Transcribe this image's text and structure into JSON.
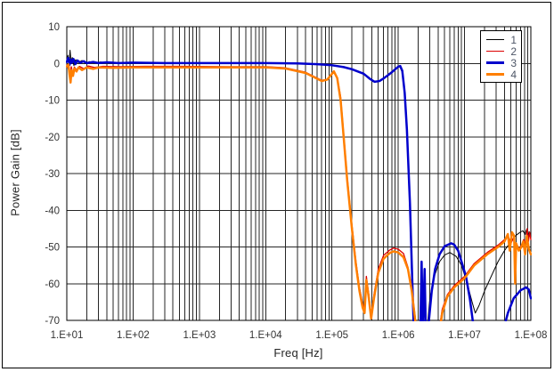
{
  "window": {
    "background": "#ffffff",
    "border_color": "#000000"
  },
  "axis_titles": {
    "x": "Freq [Hz]",
    "y": "Power Gain [dB]"
  },
  "chart_data": {
    "type": "line",
    "title": "",
    "xlabel": "Freq [Hz]",
    "ylabel": "Power Gain [dB]",
    "x_scale": "log",
    "xlim": [
      10,
      100000000
    ],
    "ylim": [
      -70,
      10
    ],
    "x_tick_labels": [
      "1.E+01",
      "1.E+02",
      "1.E+03",
      "1.E+04",
      "1.E+05",
      "1.E+06",
      "1.E+07",
      "1.E+08"
    ],
    "y_ticks": [
      10,
      0,
      -10,
      -20,
      -30,
      -40,
      -50,
      -60,
      -70
    ],
    "grid": {
      "show": true,
      "color": "#262626",
      "minor_log_vertical": true
    },
    "legend_position": "top-right",
    "legend_text_color": "#4d5566",
    "series": [
      {
        "name": "1",
        "color": "#000000",
        "stroke_width": 1,
        "points": [
          [
            10,
            0.2
          ],
          [
            10.4,
            2.2
          ],
          [
            10.8,
            -0.8
          ],
          [
            11.2,
            3.6
          ],
          [
            11.6,
            0.4
          ],
          [
            12.1,
            1.6
          ],
          [
            12.8,
            -0.6
          ],
          [
            13.6,
            1.0
          ],
          [
            15,
            0.2
          ],
          [
            17,
            0.8
          ],
          [
            19,
            0.0
          ],
          [
            22,
            0.5
          ],
          [
            26,
            0.1
          ],
          [
            32,
            0.4
          ],
          [
            45,
            0.1
          ],
          [
            70,
            0.2
          ],
          [
            150,
            0.1
          ],
          [
            500,
            0.1
          ],
          [
            2000,
            0.1
          ],
          [
            10000.0,
            0.1
          ],
          [
            30000.0,
            0.0
          ],
          [
            60000.0,
            -0.2
          ],
          [
            100000.0,
            -0.5
          ],
          [
            150000.0,
            -1.0
          ],
          [
            200000.0,
            -1.6
          ],
          [
            300000.0,
            -2.9
          ],
          [
            420000.0,
            -5.0
          ],
          [
            500000.0,
            -4.8
          ],
          [
            600000.0,
            -4.1
          ],
          [
            700000.0,
            -3.2
          ],
          [
            850000.0,
            -2.0
          ],
          [
            950000.0,
            -1.2
          ],
          [
            1050000.0,
            -0.8
          ],
          [
            1150000.0,
            -2.5
          ],
          [
            1250000.0,
            -9
          ],
          [
            1400000.0,
            -24
          ],
          [
            1550000.0,
            -45
          ],
          [
            1650000.0,
            -60
          ],
          [
            1750000.0,
            -73
          ],
          [
            2700000.0,
            -73
          ],
          [
            3000000.0,
            -64
          ],
          [
            3500000.0,
            -58
          ],
          [
            4200000.0,
            -54
          ],
          [
            5000000.0,
            -52.2
          ],
          [
            6000000.0,
            -51.5
          ],
          [
            7500000.0,
            -52.6
          ],
          [
            9000000.0,
            -55
          ],
          [
            11000000.0,
            -60
          ],
          [
            13000000.0,
            -65
          ],
          [
            14500000.0,
            -68
          ],
          [
            16500000.0,
            -66
          ],
          [
            20000000.0,
            -62
          ],
          [
            26000000.0,
            -57.5
          ],
          [
            32000000.0,
            -54
          ],
          [
            40000000.0,
            -51
          ],
          [
            50000000.0,
            -48.5
          ],
          [
            60000000.0,
            -46.8
          ],
          [
            70000000.0,
            -45.9
          ],
          [
            76000000.0,
            -45.6
          ],
          [
            82000000.0,
            -46.6
          ],
          [
            86000000.0,
            -45.3
          ],
          [
            90000000.0,
            -47.5
          ],
          [
            94000000.0,
            -45.8
          ],
          [
            100000000.0,
            -47
          ]
        ]
      },
      {
        "name": "2",
        "color": "#dd0000",
        "stroke_width": 1.3,
        "points": [
          [
            10,
            -0.4
          ],
          [
            10.7,
            -1.6
          ],
          [
            11.2,
            -3.4
          ],
          [
            11.7,
            -0.9
          ],
          [
            12.3,
            -2.6
          ],
          [
            13,
            -1.0
          ],
          [
            14.2,
            -1.9
          ],
          [
            15.5,
            -0.8
          ],
          [
            18,
            -1.4
          ],
          [
            21,
            -0.7
          ],
          [
            26,
            -1.1
          ],
          [
            35,
            -0.8
          ],
          [
            60,
            -0.9
          ],
          [
            150,
            -0.8
          ],
          [
            600,
            -0.8
          ],
          [
            3000,
            -0.9
          ],
          [
            10000.0,
            -0.9
          ],
          [
            20000.0,
            -1.2
          ],
          [
            40000.0,
            -2.4
          ],
          [
            70000.0,
            -4.6
          ],
          [
            85000.0,
            -4.3
          ],
          [
            107000.0,
            -2.0
          ],
          [
            120000.0,
            -3.8
          ],
          [
            135000.0,
            -9
          ],
          [
            150000.0,
            -19
          ],
          [
            170000.0,
            -31
          ],
          [
            200000.0,
            -44
          ],
          [
            230000.0,
            -54
          ],
          [
            260000.0,
            -61
          ],
          [
            290000.0,
            -65.5
          ],
          [
            310000.0,
            -67
          ],
          [
            330000.0,
            -58
          ],
          [
            360000.0,
            -63
          ],
          [
            390000.0,
            -68.5
          ],
          [
            430000.0,
            -63
          ],
          [
            500000.0,
            -56
          ],
          [
            600000.0,
            -52.3
          ],
          [
            750000.0,
            -50.8
          ],
          [
            850000.0,
            -50.3
          ],
          [
            1000000.0,
            -50.6
          ],
          [
            1200000.0,
            -51.8
          ],
          [
            1400000.0,
            -55.5
          ],
          [
            1600000.0,
            -61.5
          ],
          [
            1800000.0,
            -69
          ],
          [
            1900000.0,
            -73
          ],
          [
            4100000.0,
            -73
          ],
          [
            4600000.0,
            -67
          ],
          [
            5500000.0,
            -63
          ],
          [
            7000000.0,
            -60.5
          ],
          [
            10000000.0,
            -58
          ],
          [
            14000000.0,
            -54.5
          ],
          [
            22000000.0,
            -51.5
          ],
          [
            32000000.0,
            -49.5
          ],
          [
            40000000.0,
            -48
          ],
          [
            45000000.0,
            -46.8
          ],
          [
            50000000.0,
            -49
          ],
          [
            55000000.0,
            -47.5
          ],
          [
            60000000.0,
            -50.2
          ],
          [
            66000000.0,
            -50.6
          ],
          [
            72000000.0,
            -49.5
          ],
          [
            78000000.0,
            -48
          ],
          [
            84000000.0,
            -49.2
          ],
          [
            88000000.0,
            -45
          ],
          [
            92000000.0,
            -48.5
          ],
          [
            96000000.0,
            -46
          ],
          [
            100000000.0,
            -48
          ]
        ]
      },
      {
        "name": "3",
        "color": "#0000cc",
        "stroke_width": 2.5,
        "points": [
          [
            10,
            0.4
          ],
          [
            10.5,
            1.5
          ],
          [
            11,
            -0.4
          ],
          [
            11.5,
            1.1
          ],
          [
            12,
            0.2
          ],
          [
            12.6,
            1.2
          ],
          [
            13.5,
            -0.2
          ],
          [
            14.5,
            0.8
          ],
          [
            16,
            0.2
          ],
          [
            18,
            0.6
          ],
          [
            20,
            0.1
          ],
          [
            25,
            0.4
          ],
          [
            30,
            0.1
          ],
          [
            40,
            0.3
          ],
          [
            60,
            0.1
          ],
          [
            100,
            0.2
          ],
          [
            300,
            0.1
          ],
          [
            1000,
            0.1
          ],
          [
            3000,
            0.1
          ],
          [
            10000.0,
            0.1
          ],
          [
            30000.0,
            0.0
          ],
          [
            60000.0,
            -0.2
          ],
          [
            100000.0,
            -0.5
          ],
          [
            150000.0,
            -1.0
          ],
          [
            200000.0,
            -1.6
          ],
          [
            300000.0,
            -2.8
          ],
          [
            380000.0,
            -4.3
          ],
          [
            440000.0,
            -5.0
          ],
          [
            520000.0,
            -4.8
          ],
          [
            600000.0,
            -4.1
          ],
          [
            700000.0,
            -3.2
          ],
          [
            800000.0,
            -2.4
          ],
          [
            900000.0,
            -1.6
          ],
          [
            1000000.0,
            -0.9
          ],
          [
            1070000.0,
            -0.7
          ],
          [
            1150000.0,
            -2.0
          ],
          [
            1250000.0,
            -8
          ],
          [
            1350000.0,
            -18
          ],
          [
            1500000.0,
            -38
          ],
          [
            1600000.0,
            -55
          ],
          [
            1720000.0,
            -73
          ],
          [
            2150000.0,
            -73
          ],
          [
            2250000.0,
            -54
          ],
          [
            2350000.0,
            -73
          ],
          [
            2500000.0,
            -56
          ],
          [
            2600000.0,
            -73
          ],
          [
            2900000.0,
            -70
          ],
          [
            3200000.0,
            -62
          ],
          [
            3600000.0,
            -56
          ],
          [
            4200000.0,
            -52
          ],
          [
            5000000.0,
            -49.8
          ],
          [
            6300000.0,
            -49
          ],
          [
            7000000.0,
            -49.4
          ],
          [
            8000000.0,
            -51
          ],
          [
            9000000.0,
            -54
          ],
          [
            10500000.0,
            -58
          ],
          [
            12000000.0,
            -64
          ],
          [
            13500000.0,
            -71
          ],
          [
            14000000.0,
            -73
          ],
          [
            38000000.0,
            -73
          ],
          [
            45000000.0,
            -68
          ],
          [
            55000000.0,
            -64
          ],
          [
            70000000.0,
            -61.8
          ],
          [
            85000000.0,
            -61
          ],
          [
            93000000.0,
            -61.6
          ],
          [
            100000000.0,
            -64
          ]
        ]
      },
      {
        "name": "4",
        "color": "#ff7f00",
        "stroke_width": 2.5,
        "points": [
          [
            10,
            -0.8
          ],
          [
            10.6,
            -0.3
          ],
          [
            11,
            -3.0
          ],
          [
            11.4,
            -5.2
          ],
          [
            11.8,
            -1.8
          ],
          [
            12.4,
            -3.4
          ],
          [
            13,
            -1.4
          ],
          [
            14,
            -2.2
          ],
          [
            15,
            -1.1
          ],
          [
            17,
            -1.8
          ],
          [
            20,
            -1.1
          ],
          [
            25,
            -1.5
          ],
          [
            30,
            -1.1
          ],
          [
            50,
            -1.2
          ],
          [
            100,
            -1.1
          ],
          [
            300,
            -1.1
          ],
          [
            1000,
            -1.1
          ],
          [
            5000,
            -1.1
          ],
          [
            10000.0,
            -1.1
          ],
          [
            20000.0,
            -1.4
          ],
          [
            40000.0,
            -2.6
          ],
          [
            70000.0,
            -4.8
          ],
          [
            85000.0,
            -4.4
          ],
          [
            107000.0,
            -2.2
          ],
          [
            120000.0,
            -4.0
          ],
          [
            135000.0,
            -10
          ],
          [
            150000.0,
            -20
          ],
          [
            170000.0,
            -32
          ],
          [
            200000.0,
            -45
          ],
          [
            230000.0,
            -55
          ],
          [
            260000.0,
            -62
          ],
          [
            290000.0,
            -66.5
          ],
          [
            310000.0,
            -68
          ],
          [
            330000.0,
            -59
          ],
          [
            360000.0,
            -64
          ],
          [
            390000.0,
            -69.5
          ],
          [
            430000.0,
            -64
          ],
          [
            500000.0,
            -57
          ],
          [
            600000.0,
            -53.2
          ],
          [
            750000.0,
            -51.6
          ],
          [
            850000.0,
            -51.2
          ],
          [
            1000000.0,
            -51.5
          ],
          [
            1200000.0,
            -52.8
          ],
          [
            1400000.0,
            -56
          ],
          [
            1600000.0,
            -62
          ],
          [
            1800000.0,
            -70
          ],
          [
            1850000.0,
            -73
          ],
          [
            4200000.0,
            -73
          ],
          [
            4600000.0,
            -68
          ],
          [
            5500000.0,
            -63.5
          ],
          [
            7000000.0,
            -61
          ],
          [
            10000000.0,
            -58.5
          ],
          [
            14000000.0,
            -55
          ],
          [
            22000000.0,
            -52
          ],
          [
            32000000.0,
            -50
          ],
          [
            40000000.0,
            -48.5
          ],
          [
            45000000.0,
            -46.5
          ],
          [
            48000000.0,
            -51
          ],
          [
            52000000.0,
            -46
          ],
          [
            56000000.0,
            -47
          ],
          [
            58000000.0,
            -60
          ],
          [
            60000000.0,
            -49
          ],
          [
            66000000.0,
            -51
          ],
          [
            72000000.0,
            -50
          ],
          [
            77000000.0,
            -48.5
          ],
          [
            82000000.0,
            -52
          ],
          [
            87000000.0,
            -47
          ],
          [
            93000000.0,
            -50.5
          ],
          [
            100000000.0,
            -52
          ]
        ]
      }
    ]
  }
}
